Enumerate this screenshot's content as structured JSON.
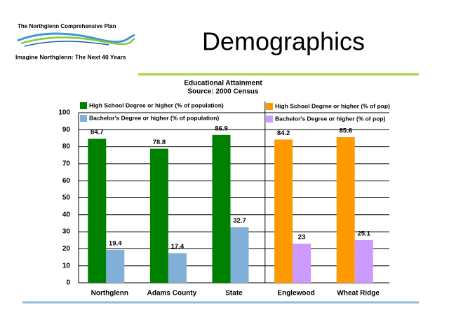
{
  "header": {
    "logo_title": "The Northglenn Comprehensive Plan",
    "logo_tagline": "Imagine Northglenn: The Next 40 Years",
    "title": "Demographics"
  },
  "chart_data": {
    "type": "bar",
    "title": "Educational Attainment",
    "subtitle": "Source: 2000 Census",
    "categories": [
      "Northglenn",
      "Adams County",
      "State",
      "Englewood",
      "Wheat Ridge"
    ],
    "series": [
      {
        "name": "High School Degree or higher (% of population)",
        "color": "#008000",
        "values": [
          84.7,
          78.8,
          86.9,
          null,
          null
        ]
      },
      {
        "name": "Bachelor's Degree or higher (% of population)",
        "color": "#80b0d8",
        "values": [
          19.4,
          17.4,
          32.7,
          null,
          null
        ]
      },
      {
        "name": "High School Degree or higher (% of pop)",
        "color": "#ff9900",
        "values": [
          null,
          null,
          null,
          84.2,
          85.6
        ]
      },
      {
        "name": "Bachelor's Degree or higher (% of pop)",
        "color": "#cc99ff",
        "values": [
          null,
          null,
          null,
          23,
          25.1
        ]
      }
    ],
    "ylim": [
      0,
      100
    ],
    "yticks": [
      0,
      10,
      20,
      30,
      40,
      50,
      60,
      70,
      80,
      90,
      100
    ],
    "grid": true
  }
}
